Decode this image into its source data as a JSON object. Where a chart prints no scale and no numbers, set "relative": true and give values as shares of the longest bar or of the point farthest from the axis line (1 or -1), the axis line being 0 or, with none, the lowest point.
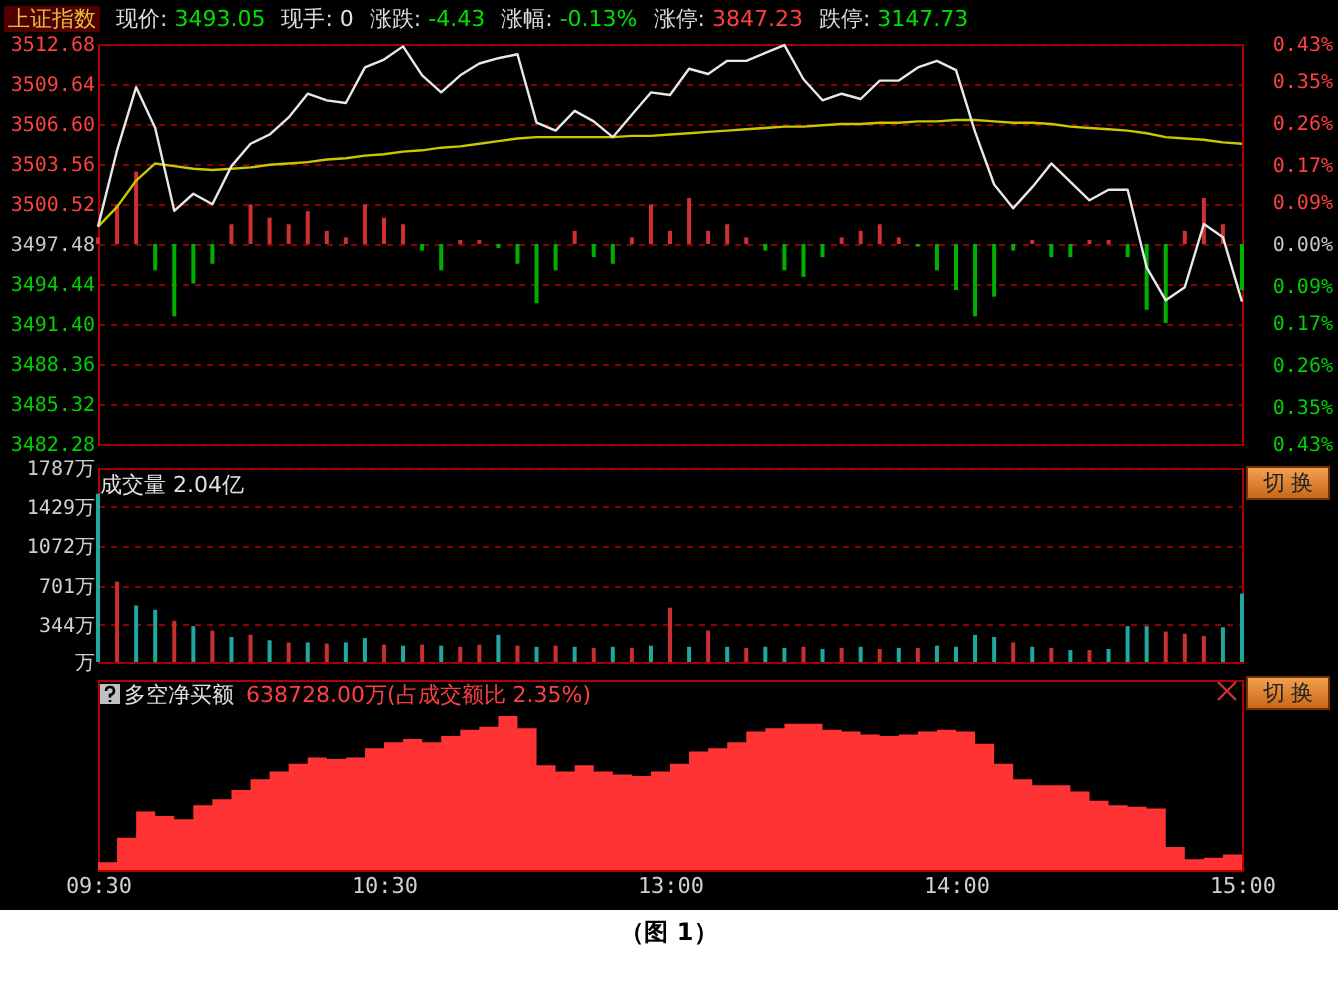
{
  "chart_data": [
    {
      "type": "line",
      "title": "上证指数",
      "annotations": [
        "现价: 3493.05",
        "现手: 0",
        "涨跌: -4.43",
        "涨幅: -0.13%",
        "涨停: 3847.23",
        "跌停: 3147.73"
      ],
      "categories": [
        null,
        null,
        null,
        null,
        null,
        null,
        null,
        null,
        null,
        null,
        null,
        null,
        null,
        null,
        null,
        null,
        null,
        null,
        null,
        null,
        null,
        null,
        null,
        null,
        null,
        null,
        null,
        null,
        null,
        null,
        null,
        null,
        null,
        null,
        null,
        null,
        null,
        null,
        null,
        null,
        null,
        null,
        null,
        null,
        null,
        null,
        null,
        null,
        null,
        null,
        null,
        null,
        null,
        null,
        null,
        null,
        null,
        null,
        null,
        null,
        null
      ],
      "ylim": [
        3482.28,
        3512.68
      ],
      "yticks": [
        3482.28,
        3485.32,
        3488.36,
        {
          "value": 3491.4,
          "label": "3491.40"
        },
        3494.44,
        3497.48,
        3500.52,
        3503.56,
        {
          "value": 3506.6,
          "label": "3506.60"
        },
        3509.64,
        3512.68
      ],
      "y2lim": [
        -0.43,
        0.43
      ],
      "y2ticks": [
        {
          "value": -0.43,
          "label": "0.43%"
        },
        {
          "value": -0.35,
          "label": "0.35%"
        },
        {
          "value": -0.26,
          "label": "0.26%"
        },
        {
          "value": -0.17,
          "label": "0.17%"
        },
        {
          "value": -0.09,
          "label": "0.09%"
        },
        {
          "value": 0,
          "label": "0.00%"
        },
        {
          "value": 0.09,
          "label": "0.09%"
        },
        {
          "value": 0.17,
          "label": "0.17%"
        },
        {
          "value": 0.26,
          "label": "0.26%"
        },
        {
          "value": 0.35,
          "label": "0.35%"
        },
        {
          "value": 0.43,
          "label": "0.43%"
        }
      ],
      "grid": "y",
      "tick_labels": "y",
      "series": [
        {
          "type": "bar",
          "values": [
            0.5,
            3,
            5.5,
            -2,
            -5.5,
            -3,
            -1.5,
            1.5,
            3,
            2,
            1.5,
            2.5,
            1,
            0.5,
            3,
            2,
            1.5,
            -0.5,
            -2,
            0.3,
            0.3,
            -0.3,
            -1.5,
            -4.5,
            -2,
            1,
            -1,
            -1.5,
            0.5,
            3,
            1,
            3.5,
            1,
            1.5,
            0.5,
            -0.5,
            -2,
            -2.5,
            -1,
            0.5,
            1,
            1.5,
            0.5,
            -0.2,
            -2,
            -3.5,
            -5.5,
            -4,
            -0.5,
            0.3,
            -1,
            -1,
            0.3,
            0.3,
            -1,
            -5,
            -6,
            1,
            3.5,
            1.5,
            -3.5
          ],
          "base": [
            3497.48,
            3497.48,
            3497.48,
            3497.48,
            3497.48,
            3497.48,
            3497.48,
            3497.48,
            3497.48,
            3497.48,
            3497.48,
            3497.48,
            3497.48,
            3497.48,
            3497.48,
            3497.48,
            3497.48,
            3497.48,
            3497.48,
            3497.48,
            3497.48,
            3497.48,
            3497.48,
            3497.48,
            3497.48,
            3497.48,
            3497.48,
            3497.48,
            3497.48,
            3497.48,
            3497.48,
            3497.48,
            3497.48,
            3497.48,
            3497.48,
            3497.48,
            3497.48,
            3497.48,
            3497.48,
            3497.48,
            3497.48,
            3497.48,
            3497.48,
            3497.48,
            3497.48,
            3497.48,
            3497.48,
            3497.48,
            3497.48,
            3497.48,
            3497.48,
            3497.48,
            3497.48,
            3497.48,
            3497.48,
            3497.48,
            3497.48,
            3497.48,
            3497.48,
            3497.48,
            3497.48
          ],
          "colors": [
            "#d03030",
            "#d03030",
            "#d03030",
            "#00b000",
            "#00b000",
            "#00b000",
            "#00b000",
            "#d03030",
            "#d03030",
            "#d03030",
            "#d03030",
            "#d03030",
            "#d03030",
            "#d03030",
            "#d03030",
            "#d03030",
            "#d03030",
            "#00b000",
            "#00b000",
            "#d03030",
            "#d03030",
            "#00b000",
            "#00b000",
            "#00b000",
            "#00b000",
            "#d03030",
            "#00b000",
            "#00b000",
            "#d03030",
            "#d03030",
            "#d03030",
            "#d03030",
            "#d03030",
            "#d03030",
            "#d03030",
            "#00b000",
            "#00b000",
            "#00b000",
            "#00b000",
            "#d03030",
            "#d03030",
            "#d03030",
            "#d03030",
            "#00b000",
            "#00b000",
            "#00b000",
            "#00b000",
            "#00b000",
            "#00b000",
            "#d03030",
            "#00b000",
            "#00b000",
            "#d03030",
            "#d03030",
            "#00b000",
            "#00b000",
            "#00b000",
            "#d03030",
            "#d03030",
            "#d03030",
            "#00b000"
          ]
        },
        {
          "type": "line",
          "color": "#c8c800",
          "values": [
            3498.8,
            3500.3,
            3502.3,
            3503.6,
            3503.4,
            3503.2,
            3503.1,
            3503.2,
            3503.3,
            3503.5,
            3503.6,
            3503.7,
            3503.9,
            3504.0,
            3504.2,
            3504.3,
            3504.5,
            3504.6,
            3504.8,
            3504.9,
            3505.1,
            3505.3,
            3505.5,
            3505.6,
            3505.6,
            3505.6,
            3505.6,
            3505.6,
            3505.7,
            3505.7,
            3505.8,
            3505.9,
            3506.0,
            3506.1,
            3506.2,
            3506.3,
            3506.4,
            3506.4,
            3506.5,
            3506.6,
            3506.6,
            3506.7,
            3506.7,
            3506.8,
            3506.8,
            3506.9,
            3506.9,
            3506.8,
            3506.7,
            3506.7,
            3506.6,
            3506.4,
            3506.3,
            3506.2,
            3506.1,
            3505.9,
            3505.6,
            3505.5,
            3505.4,
            3505.2,
            3505.1
          ]
        },
        {
          "type": "line",
          "color": "#e8e8e8",
          "values": [
            3498.8,
            3504.6,
            3509.4,
            3506.3,
            3500.0,
            3501.3,
            3500.5,
            3503.4,
            3505.1,
            3505.8,
            3507.1,
            3508.9,
            3508.4,
            3508.2,
            3510.9,
            3511.5,
            3512.5,
            3510.3,
            3509.0,
            3510.3,
            3511.2,
            3511.6,
            3511.9,
            3506.7,
            3506.1,
            3507.6,
            3506.8,
            3505.6,
            3507.3,
            3509.0,
            3508.8,
            3510.8,
            3510.4,
            3511.4,
            3511.4,
            3512.0,
            3512.6,
            3510.0,
            3508.4,
            3508.9,
            3508.5,
            3509.9,
            3509.9,
            3510.9,
            3511.4,
            3510.7,
            3506.0,
            3502.0,
            3500.2,
            3501.8,
            3503.6,
            3502.2,
            3500.8,
            3501.6,
            3501.6,
            3495.7,
            3493.2,
            3494.2,
            3499.0,
            3498.0,
            3493.1
          ]
        }
      ]
    },
    {
      "type": "bar",
      "title": "成交量 2.04亿",
      "annotations": [
        "切 换"
      ],
      "categories": [
        null,
        null,
        null,
        null,
        null,
        null,
        null,
        null,
        null,
        null,
        null,
        null,
        null,
        null,
        null,
        null,
        null,
        null,
        null,
        null,
        null,
        null,
        null,
        null,
        null,
        null,
        null,
        null,
        null,
        null,
        null,
        null,
        null,
        null,
        null,
        null,
        null,
        null,
        null,
        null,
        null,
        null,
        null,
        null,
        null,
        null,
        null,
        null,
        null,
        null,
        null,
        null,
        null,
        null,
        null,
        null,
        null,
        null,
        null,
        null,
        null
      ],
      "ylim": [
        0,
        1787
      ],
      "yticks": [
        {
          "value": 0,
          "label": "万"
        },
        {
          "value": 344,
          "label": "344万"
        },
        {
          "value": 701,
          "label": "701万"
        },
        {
          "value": 1072,
          "label": "1072万"
        },
        {
          "value": 1429,
          "label": "1429万"
        },
        {
          "value": 1787,
          "label": "1787万"
        }
      ],
      "grid": "y",
      "tick_labels": "y",
      "values": [
        1550,
        740,
        520,
        480,
        380,
        330,
        290,
        230,
        250,
        200,
        180,
        180,
        170,
        180,
        220,
        160,
        150,
        160,
        150,
        140,
        160,
        250,
        150,
        140,
        150,
        140,
        130,
        140,
        130,
        150,
        500,
        140,
        290,
        140,
        130,
        140,
        130,
        140,
        120,
        130,
        140,
        120,
        130,
        130,
        150,
        140,
        250,
        230,
        180,
        140,
        130,
        110,
        110,
        120,
        330,
        330,
        280,
        260,
        240,
        320,
        630
      ],
      "colors": [
        "#20a8a0",
        "#c83030",
        "#20a8a0",
        "#20a8a0",
        "#c83030",
        "#20a8a0",
        "#c83030",
        "#20a8a0",
        "#c83030",
        "#20a8a0",
        "#c83030",
        "#20a8a0",
        "#c83030",
        "#20a8a0",
        "#20a8a0",
        "#c83030",
        "#20a8a0",
        "#c83030",
        "#20a8a0",
        "#c83030",
        "#c83030",
        "#20a8a0",
        "#c83030",
        "#20a8a0",
        "#c83030",
        "#20a8a0",
        "#c83030",
        "#20a8a0",
        "#c83030",
        "#20a8a0",
        "#c83030",
        "#20a8a0",
        "#c83030",
        "#20a8a0",
        "#c83030",
        "#20a8a0",
        "#20a8a0",
        "#c83030",
        "#20a8a0",
        "#c83030",
        "#20a8a0",
        "#c83030",
        "#20a8a0",
        "#c83030",
        "#20a8a0",
        "#20a8a0",
        "#20a8a0",
        "#20a8a0",
        "#c83030",
        "#20a8a0",
        "#c83030",
        "#20a8a0",
        "#c83030",
        "#20a8a0",
        "#20a8a0",
        "#20a8a0",
        "#c83030",
        "#c83030",
        "#c83030",
        "#20a8a0",
        "#20a8a0"
      ]
    },
    {
      "type": "area",
      "relative": true,
      "title": "多空净买额",
      "annotations": [
        "638728.00万(占成交额比 2.35%)",
        "切 换",
        "（图 1）"
      ],
      "color": "#ff3333",
      "categories": [
        "09:30",
        null,
        null,
        null,
        null,
        null,
        null,
        null,
        null,
        null,
        null,
        null,
        null,
        null,
        null,
        "10:30",
        null,
        null,
        null,
        null,
        null,
        null,
        null,
        null,
        null,
        null,
        null,
        null,
        null,
        null,
        "13:00",
        null,
        null,
        null,
        null,
        null,
        null,
        null,
        null,
        null,
        null,
        null,
        null,
        null,
        null,
        "14:00",
        null,
        null,
        null,
        null,
        null,
        null,
        null,
        null,
        null,
        null,
        null,
        null,
        null,
        null,
        "15:00"
      ],
      "tick_labels": "x",
      "values": [
        0.05,
        0.21,
        0.38,
        0.35,
        0.33,
        0.42,
        0.46,
        0.52,
        0.59,
        0.64,
        0.69,
        0.73,
        0.72,
        0.73,
        0.79,
        0.83,
        0.85,
        0.83,
        0.87,
        0.91,
        0.93,
        1,
        0.92,
        0.68,
        0.64,
        0.68,
        0.64,
        0.62,
        0.61,
        0.64,
        0.69,
        0.77,
        0.79,
        0.83,
        0.9,
        0.92,
        0.95,
        0.95,
        0.91,
        0.9,
        0.88,
        0.87,
        0.88,
        0.9,
        0.91,
        0.9,
        0.82,
        0.69,
        0.59,
        0.55,
        0.55,
        0.51,
        0.45,
        0.42,
        0.41,
        0.4,
        0.15,
        0.07,
        0.08,
        0.1,
        0.05
      ]
    }
  ]
}
